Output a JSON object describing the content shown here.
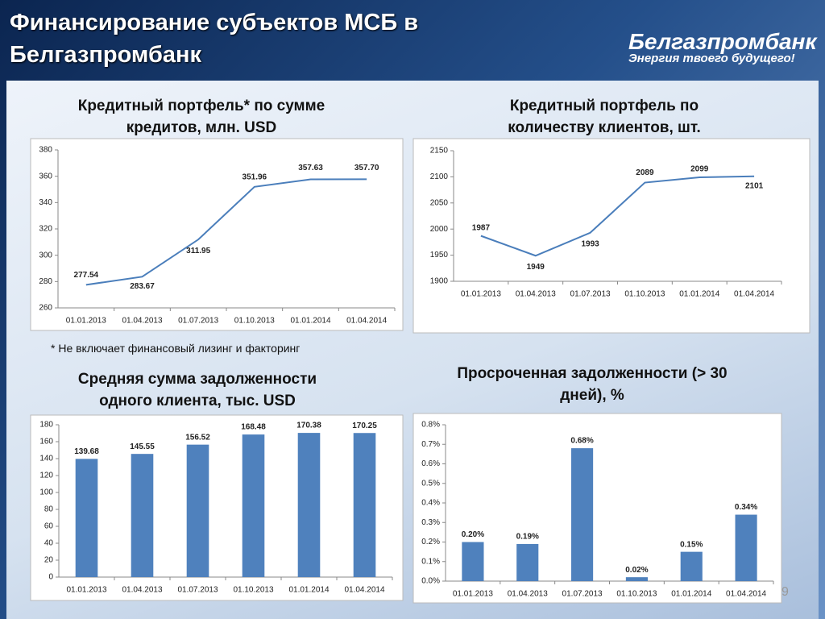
{
  "slide": {
    "title": "Финансирование субъектов МСБ в Белгазпромбанк",
    "logo_name": "Белгазпромбанк",
    "logo_slogan": "Энергия твоего будущего!",
    "footnote": "* Не включает финансовый лизинг и факторинг",
    "page_number": "9"
  },
  "chart_data": [
    {
      "type": "line",
      "title": "Кредитный портфель* по сумме кредитов, млн. USD",
      "color": "#4a7ebb",
      "categories": [
        "01.01.2013",
        "01.04.2013",
        "01.07.2013",
        "01.10.2013",
        "01.01.2014",
        "01.04.2014"
      ],
      "values": [
        277.54,
        283.67,
        311.95,
        351.96,
        357.63,
        357.7
      ],
      "value_labels": [
        "277.54",
        "283.67",
        "311.95",
        "351.96",
        "357.63",
        "357.70"
      ],
      "ylim": [
        260,
        380
      ],
      "yticks": [
        260,
        280,
        300,
        320,
        340,
        360,
        380
      ]
    },
    {
      "type": "line",
      "title": "Кредитный портфель по количеству клиентов, шт.",
      "color": "#4a7ebb",
      "categories": [
        "01.01.2013",
        "01.04.2013",
        "01.07.2013",
        "01.10.2013",
        "01.01.2014",
        "01.04.2014"
      ],
      "values": [
        1987,
        1949,
        1993,
        2089,
        2099,
        2101
      ],
      "ylim": [
        1900,
        2150
      ],
      "yticks": [
        1900,
        1950,
        2000,
        2050,
        2100,
        2150
      ]
    },
    {
      "type": "bar",
      "title": "Средняя сумма задолженности одного клиента, тыс. USD",
      "color": "#4f81bd",
      "categories": [
        "01.01.2013",
        "01.04.2013",
        "01.07.2013",
        "01.10.2013",
        "01.01.2014",
        "01.04.2014"
      ],
      "values": [
        139.68,
        145.55,
        156.52,
        168.48,
        170.38,
        170.25
      ],
      "value_labels": [
        "139.68",
        "145.55",
        "156.52",
        "168.48",
        "170.38",
        "170.25"
      ],
      "ylim": [
        0,
        180
      ],
      "yticks": [
        0,
        20,
        40,
        60,
        80,
        100,
        120,
        140,
        160,
        180
      ]
    },
    {
      "type": "bar",
      "title": "Просроченная задолженности (> 30 дней), %",
      "color": "#4f81bd",
      "categories": [
        "01.01.2013",
        "01.04.2013",
        "01.07.2013",
        "01.10.2013",
        "01.01.2014",
        "01.04.2014"
      ],
      "values": [
        0.2,
        0.19,
        0.68,
        0.02,
        0.15,
        0.34
      ],
      "value_labels": [
        "0.20%",
        "0.19%",
        "0.68%",
        "0.02%",
        "0.15%",
        "0.34%"
      ],
      "ylim": [
        0,
        0.8
      ],
      "yticks": [
        {
          "value": 0,
          "label": "0.0%"
        },
        {
          "value": 0.1,
          "label": "0.1%"
        },
        {
          "value": 0.2,
          "label": "0.2%"
        },
        {
          "value": 0.3,
          "label": "0.3%"
        },
        {
          "value": 0.4,
          "label": "0.4%"
        },
        {
          "value": 0.5,
          "label": "0.5%"
        },
        {
          "value": 0.6,
          "label": "0.6%"
        },
        {
          "value": 0.7,
          "label": "0.7%"
        },
        {
          "value": 0.8,
          "label": "0.8%"
        }
      ]
    }
  ]
}
